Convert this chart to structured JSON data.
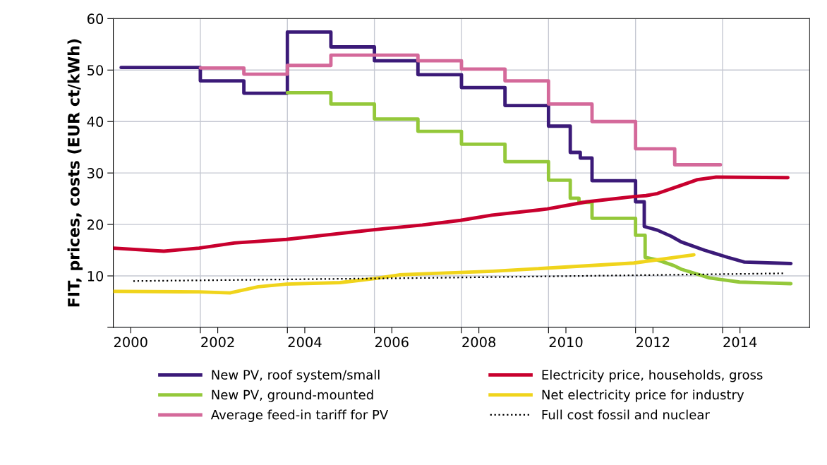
{
  "chart_data": {
    "type": "line",
    "ylabel": "FIT, prices, costs (EUR ct/kWh)",
    "xlim": [
      1999.6,
      2015.6
    ],
    "ylim": [
      0,
      60
    ],
    "xticks": [
      2000,
      2002,
      2004,
      2006,
      2008,
      2010,
      2012,
      2014,
      {
        "value": 2001.6,
        "label": null
      },
      {
        "value": 2003.6,
        "label": null
      },
      {
        "value": 2005.6,
        "label": null
      },
      {
        "value": 2007.6,
        "label": null
      },
      {
        "value": 2009.6,
        "label": null
      },
      {
        "value": 2011.6,
        "label": null
      },
      {
        "value": 2013.6,
        "label": null
      }
    ],
    "yticks": [
      {
        "value": 0,
        "label": null
      },
      10,
      20,
      30,
      40,
      50,
      60
    ],
    "grid": true,
    "legend": "bottom",
    "marker": "none",
    "series": [
      {
        "name": "New PV, roof system/small",
        "color": "#3b1a78",
        "x": [
          1999.78,
          2001.6,
          2001.6,
          2002.6,
          2002.6,
          2003.6,
          2003.6,
          2004.6,
          2004.6,
          2005.6,
          2005.6,
          2006.6,
          2006.6,
          2007.6,
          2007.6,
          2008.6,
          2008.6,
          2009.6,
          2009.6,
          2010.1,
          2010.1,
          2010.33,
          2010.33,
          2010.6,
          2010.6,
          2011.6,
          2011.6,
          2011.8,
          2011.8,
          2012.1,
          2012.42,
          2012.65,
          2013.18,
          2013.72,
          2014.1,
          2015.17
        ],
        "values": [
          50.5,
          50.5,
          47.9,
          47.9,
          45.5,
          45.5,
          57.4,
          57.4,
          54.5,
          54.5,
          51.8,
          51.8,
          49.1,
          49.1,
          46.6,
          46.6,
          43.1,
          43.1,
          39.1,
          39.1,
          34.0,
          34.0,
          32.9,
          32.9,
          28.5,
          28.5,
          24.4,
          24.4,
          19.6,
          18.9,
          17.7,
          16.6,
          15.0,
          13.6,
          12.7,
          12.4
        ]
      },
      {
        "name": "New PV, ground-mounted",
        "color": "#94c83a",
        "x": [
          2003.6,
          2004.6,
          2004.6,
          2005.6,
          2005.6,
          2006.6,
          2006.6,
          2007.6,
          2007.6,
          2008.6,
          2008.6,
          2009.6,
          2009.6,
          2010.1,
          2010.1,
          2010.3,
          2010.3,
          2010.6,
          2010.6,
          2011.6,
          2011.6,
          2011.82,
          2011.82,
          2012.1,
          2012.48,
          2012.65,
          2013.3,
          2013.99,
          2015.17
        ],
        "values": [
          45.6,
          45.6,
          43.4,
          43.4,
          40.5,
          40.5,
          38.1,
          38.1,
          35.6,
          35.6,
          32.2,
          32.2,
          28.6,
          28.6,
          25.1,
          25.1,
          24.3,
          24.3,
          21.2,
          21.2,
          17.9,
          17.9,
          13.6,
          13.1,
          12.0,
          11.3,
          9.6,
          8.8,
          8.5
        ]
      },
      {
        "name": "Average feed-in tariff for PV",
        "color": "#d4699a",
        "x": [
          2001.6,
          2002.6,
          2002.6,
          2003.6,
          2003.6,
          2004.6,
          2004.6,
          2006.6,
          2006.6,
          2007.6,
          2007.6,
          2008.6,
          2008.6,
          2009.6,
          2009.6,
          2010.6,
          2010.6,
          2011.6,
          2011.6,
          2012.5,
          2012.5,
          2013.55
        ],
        "values": [
          50.4,
          50.4,
          49.2,
          49.2,
          50.9,
          50.9,
          52.9,
          52.9,
          51.8,
          51.8,
          50.2,
          50.2,
          47.9,
          47.9,
          43.4,
          43.4,
          40.0,
          40.0,
          34.7,
          34.7,
          31.6,
          31.6
        ]
      },
      {
        "name": "Electricity price, households, gross",
        "color": "#c8002e",
        "x": [
          1999.6,
          2000.76,
          2001.57,
          2002.38,
          2003.58,
          2004.55,
          2005.62,
          2006.7,
          2007.58,
          2008.3,
          2009.57,
          2010.48,
          2011.56,
          2011.84,
          2012.1,
          2012.65,
          2013.02,
          2013.45,
          2015.1
        ],
        "values": [
          15.4,
          14.8,
          15.4,
          16.4,
          17.1,
          18.0,
          19.0,
          19.9,
          20.8,
          21.8,
          23.0,
          24.4,
          25.4,
          25.6,
          26.0,
          27.6,
          28.7,
          29.2,
          29.1
        ]
      },
      {
        "name": "Net electricity price for industry",
        "color": "#f0d41c",
        "x": [
          1999.6,
          2001.57,
          2002.28,
          2002.93,
          2003.58,
          2004.81,
          2005.62,
          2006.17,
          2006.7,
          2008.32,
          2011.56,
          2012.94
        ],
        "values": [
          7.0,
          6.9,
          6.7,
          7.9,
          8.4,
          8.7,
          9.5,
          10.2,
          10.4,
          10.9,
          12.5,
          14.1
        ]
      },
      {
        "name": "Full cost fossil and nuclear",
        "color": "#000000",
        "line_style": "dotted",
        "x": [
          2000.06,
          2006.7,
          2015.04
        ],
        "values": [
          9.0,
          9.6,
          10.5
        ]
      }
    ]
  }
}
